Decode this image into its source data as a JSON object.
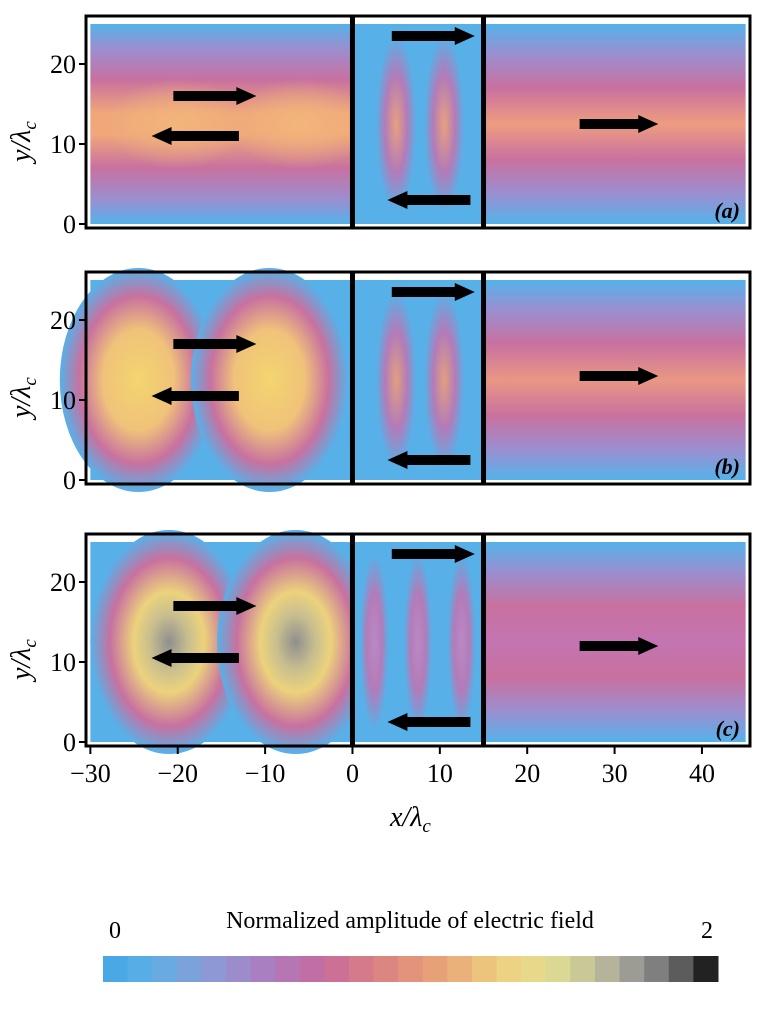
{
  "chart_data": {
    "type": "heatmap",
    "panels": [
      {
        "label": "(a)",
        "arrows_left": [
          {
            "y": 16,
            "dir": "right"
          },
          {
            "y": 11,
            "dir": "left"
          }
        ],
        "arrows_mid": [
          {
            "y": 23.5,
            "dir": "right"
          },
          {
            "y": 3,
            "dir": "left"
          }
        ],
        "arrow_right": {
          "y": 12.5,
          "dir": "right"
        }
      },
      {
        "label": "(b)",
        "arrows_left": [
          {
            "y": 17,
            "dir": "right"
          },
          {
            "y": 10.5,
            "dir": "left"
          }
        ],
        "arrows_mid": [
          {
            "y": 23.5,
            "dir": "right"
          },
          {
            "y": 2.5,
            "dir": "left"
          }
        ],
        "arrow_right": {
          "y": 13,
          "dir": "right"
        }
      },
      {
        "label": "(c)",
        "arrows_left": [
          {
            "y": 17,
            "dir": "right"
          },
          {
            "y": 10.5,
            "dir": "left"
          }
        ],
        "arrows_mid": [
          {
            "y": 23.5,
            "dir": "right"
          },
          {
            "y": 2.5,
            "dir": "left"
          }
        ],
        "arrow_right": {
          "y": 12,
          "dir": "right"
        }
      }
    ],
    "barriers_x": [
      0,
      15
    ],
    "xlim": [
      -30.5,
      45.5
    ],
    "ylim": [
      -0.5,
      26
    ],
    "xticks": [
      -30,
      -20,
      -10,
      0,
      10,
      20,
      30,
      40
    ],
    "yticks": [
      0,
      10,
      20
    ],
    "xlabel": {
      "main": "x/λ",
      "sub": "c"
    },
    "ylabel": {
      "main": "y/λ",
      "sub": "c"
    },
    "colorbar": {
      "title": "Normalized amplitude of electric field",
      "min_label": "0",
      "max_label": "2",
      "range": [
        0,
        2
      ],
      "colors": [
        "#4aa9e4",
        "#57aee6",
        "#6aaae2",
        "#7ca2dc",
        "#8e98d4",
        "#9c8ccc",
        "#a97fc1",
        "#b576b3",
        "#c06ea3",
        "#cc7096",
        "#d57a8a",
        "#dc8682",
        "#e3937c",
        "#e8a079",
        "#eab27a",
        "#ecc47c",
        "#ecd282",
        "#e6d98a",
        "#dad892",
        "#c9c897",
        "#b5b49a",
        "#9c9c95",
        "#7f7f7f",
        "#5c5c5c",
        "#222222"
      ]
    }
  }
}
